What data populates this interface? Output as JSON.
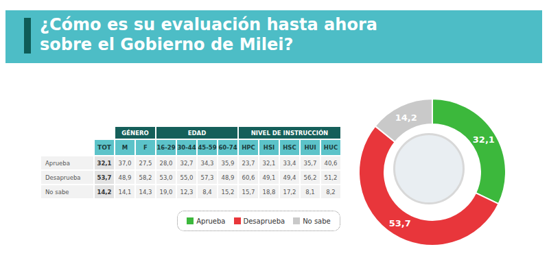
{
  "header": {
    "lines": [
      "¿Cómo es su evaluación hasta ahora",
      "sobre el Gobierno de Milei?"
    ]
  },
  "table": {
    "total_header": "TOT",
    "groups": [
      {
        "label": "GÉNERO",
        "columns": [
          "M",
          "F"
        ]
      },
      {
        "label": "EDAD",
        "columns": [
          "16-29",
          "30-44",
          "45-59",
          "60-74"
        ]
      },
      {
        "label": "NIVEL DE INSTRUCCIÓN",
        "columns": [
          "HPC",
          "HSI",
          "HSC",
          "HUI",
          "HUC"
        ]
      }
    ],
    "rows": [
      {
        "label": "Aprueba",
        "total": "32,1",
        "values": [
          "37,0",
          "27,5",
          "28,0",
          "32,7",
          "34,3",
          "35,9",
          "23,7",
          "32,1",
          "33,4",
          "35,7",
          "40,6"
        ]
      },
      {
        "label": "Desaprueba",
        "total": "53,7",
        "values": [
          "48,9",
          "58,2",
          "53,0",
          "55,0",
          "57,3",
          "48,9",
          "60,6",
          "49,1",
          "49,4",
          "56,2",
          "51,2"
        ]
      },
      {
        "label": "No sabe",
        "total": "14,2",
        "values": [
          "14,1",
          "14,3",
          "19,0",
          "12,3",
          "8,4",
          "15,2",
          "15,7",
          "18,8",
          "17,2",
          "8,1",
          "8,2"
        ]
      }
    ]
  },
  "chart_data": {
    "type": "pie",
    "categories": [
      "Aprueba",
      "Desaprueba",
      "No sabe"
    ],
    "values": [
      32.1,
      53.7,
      14.2
    ],
    "value_labels": [
      "32,1",
      "53,7",
      "14,2"
    ],
    "colors": [
      "#3cb83c",
      "#e8363b",
      "#c9c9c9"
    ],
    "data_labels": true,
    "legend": "bottom"
  }
}
